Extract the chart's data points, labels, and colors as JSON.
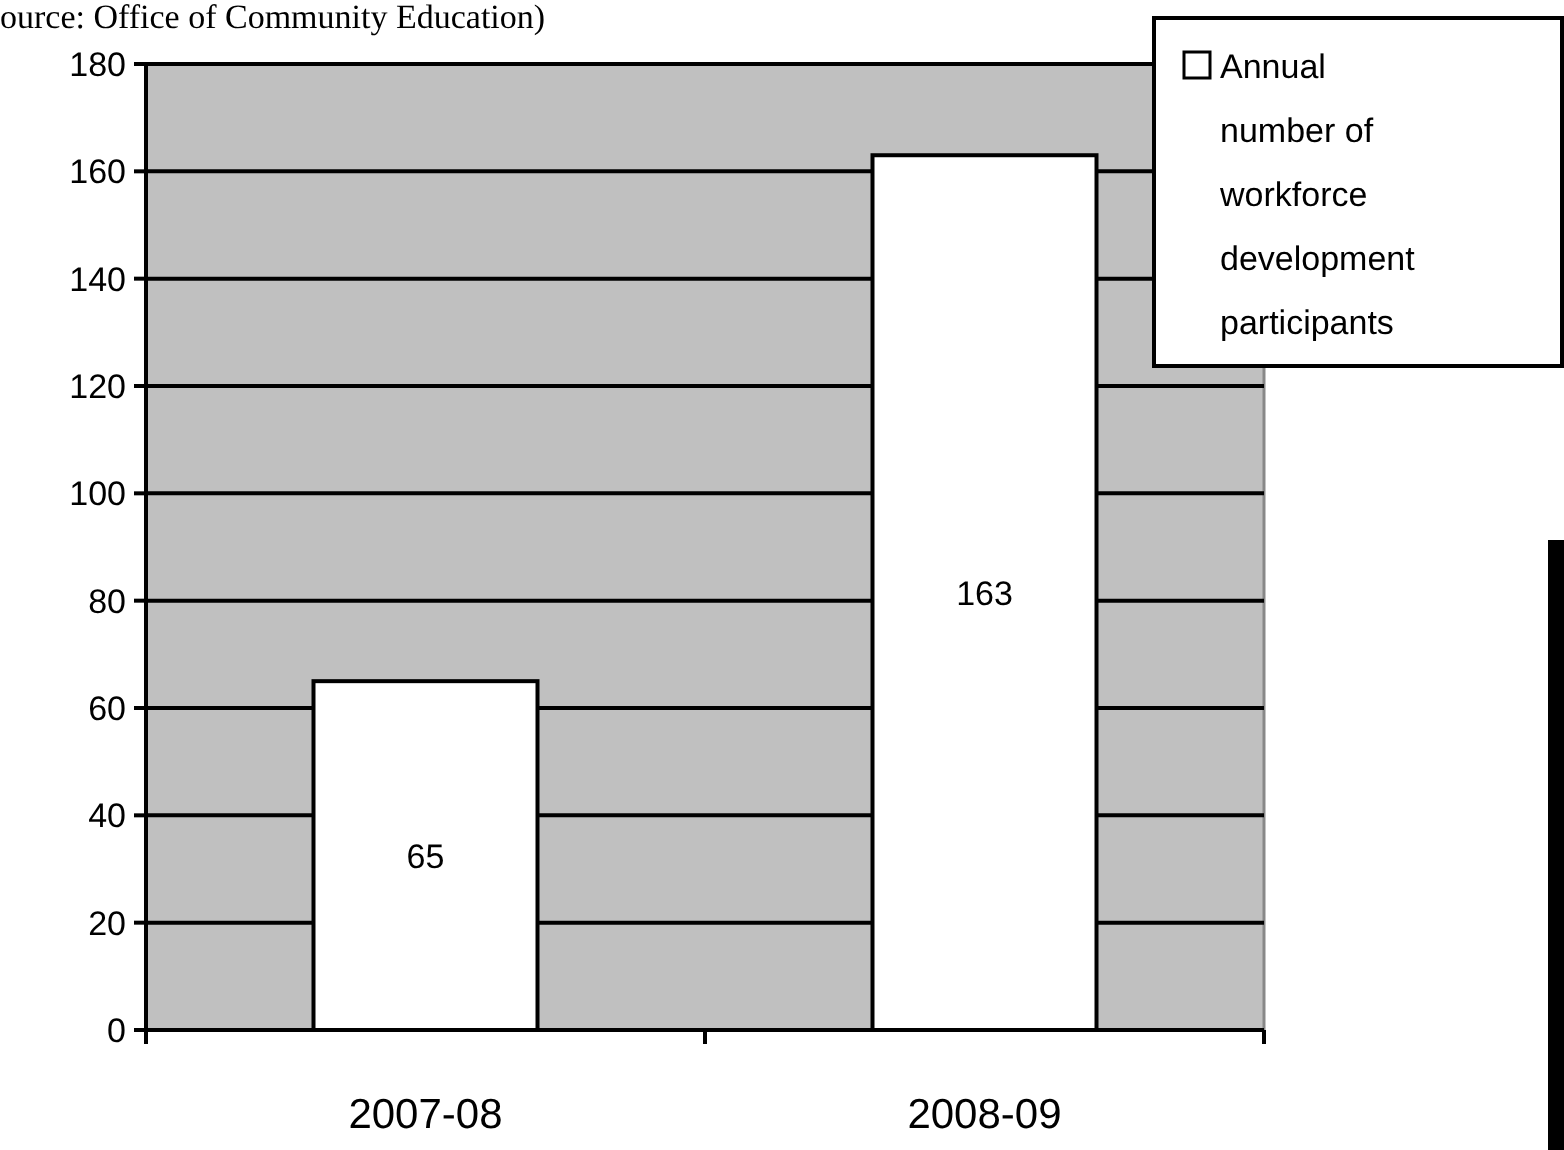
{
  "chart_data": {
    "type": "bar",
    "categories": [
      "2007-08",
      "2008-09"
    ],
    "series": [
      {
        "name": "Annual number of workforce development participants",
        "color": "#ffffff",
        "values": [
          65,
          163
        ]
      }
    ],
    "ylim": [
      0,
      180
    ],
    "yticks": [
      0,
      20,
      40,
      60,
      80,
      100,
      120,
      140,
      160,
      180
    ],
    "grid": "y",
    "data_labels": true,
    "legend": "top right",
    "annotations": [
      "ource:  Office of Community Education)"
    ]
  }
}
